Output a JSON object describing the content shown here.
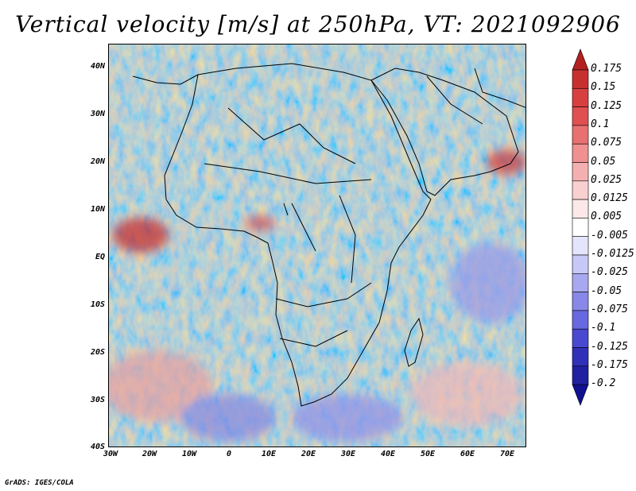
{
  "title": "Vertical velocity [m/s] at 250hPa, VT: 2021092906",
  "credit": "GrADS: IGES/COLA",
  "map": {
    "lat_labels": [
      "40N",
      "30N",
      "20N",
      "10N",
      "EQ",
      "10S",
      "20S",
      "30S",
      "40S"
    ],
    "lon_labels": [
      "30W",
      "20W",
      "10W",
      "0",
      "10E",
      "20E",
      "30E",
      "40E",
      "50E",
      "60E",
      "70E"
    ],
    "lon_range": [
      -30,
      75
    ],
    "lat_range": [
      -40,
      45
    ]
  },
  "colorbar": {
    "labels": [
      "0.175",
      "0.15",
      "0.125",
      "0.1",
      "0.075",
      "0.05",
      "0.025",
      "0.0125",
      "0.005",
      "-0.005",
      "-0.0125",
      "-0.025",
      "-0.05",
      "-0.075",
      "-0.1",
      "-0.125",
      "-0.175",
      "-0.2"
    ],
    "colors": [
      "#b42020",
      "#c83030",
      "#d84040",
      "#e05050",
      "#e87070",
      "#f09090",
      "#f4b0b0",
      "#f8d0d0",
      "#fce8e8",
      "#ffffff",
      "#e4e4fc",
      "#c8c8f8",
      "#a8a8f0",
      "#8888e8",
      "#6868e0",
      "#4848d0",
      "#3030b8",
      "#2020a0",
      "#101090"
    ]
  }
}
